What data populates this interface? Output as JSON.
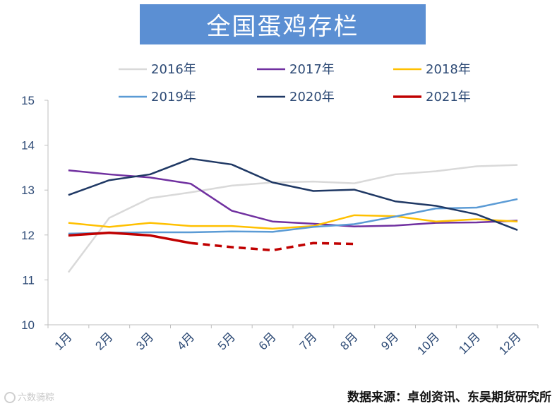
{
  "chart_data": {
    "type": "line",
    "title": "全国蛋鸡存栏",
    "xlabel": "",
    "ylabel": "",
    "categories": [
      "1月",
      "2月",
      "3月",
      "4月",
      "5月",
      "6月",
      "7月",
      "8月",
      "9月",
      "10月",
      "11月",
      "12月"
    ],
    "ylim": [
      10,
      15
    ],
    "yticks": [
      10,
      11,
      12,
      13,
      14,
      15
    ],
    "grid": false,
    "legend_position": "top",
    "series": [
      {
        "name": "2016年",
        "color": "#d9d9d9",
        "values": [
          11.17,
          12.38,
          12.82,
          12.95,
          13.1,
          13.17,
          13.19,
          13.15,
          13.35,
          13.42,
          13.53,
          13.56
        ]
      },
      {
        "name": "2017年",
        "color": "#7030a0",
        "values": [
          13.44,
          13.35,
          13.28,
          13.14,
          12.54,
          12.3,
          12.25,
          12.19,
          12.21,
          12.27,
          12.28,
          12.32
        ]
      },
      {
        "name": "2018年",
        "color": "#ffc000",
        "values": [
          12.27,
          12.18,
          12.27,
          12.2,
          12.2,
          12.14,
          12.2,
          12.44,
          12.42,
          12.3,
          12.35,
          12.3
        ]
      },
      {
        "name": "2019年",
        "color": "#5b9bd5",
        "values": [
          12.03,
          12.05,
          12.06,
          12.06,
          12.08,
          12.07,
          12.18,
          12.24,
          12.41,
          12.59,
          12.61,
          12.8
        ]
      },
      {
        "name": "2020年",
        "color": "#1f3864",
        "values": [
          12.89,
          13.22,
          13.35,
          13.7,
          13.57,
          13.17,
          12.98,
          13.01,
          12.75,
          12.65,
          12.46,
          12.11
        ]
      },
      {
        "name": "2021年",
        "color": "#c00000",
        "values": [
          11.99,
          12.05,
          11.99,
          11.82,
          11.73,
          11.66,
          11.82,
          11.8,
          null,
          null,
          null,
          null
        ],
        "dashed_from_index": 3
      }
    ]
  },
  "source": "数据来源：卓创资讯、东吴期货研究所",
  "watermark": "六数骑粽"
}
